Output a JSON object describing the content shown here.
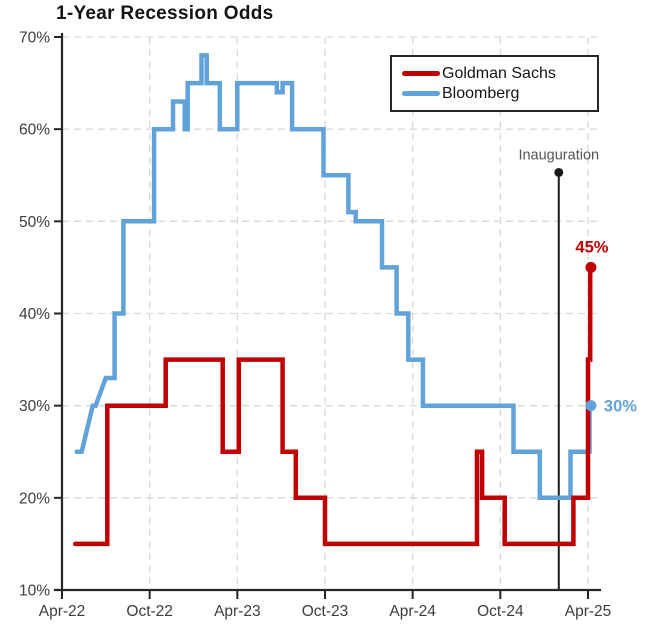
{
  "title": "1-Year Recession Odds",
  "colors": {
    "goldman": "#c00000",
    "bloomberg": "#62a2da",
    "grid": "#d9d9d9",
    "axis": "#262626",
    "tick_label": "#3d3d3d",
    "annotation": "#555555",
    "background": "#ffffff"
  },
  "legend": {
    "items": [
      {
        "label": "Goldman Sachs",
        "series": "goldman"
      },
      {
        "label": "Bloomberg",
        "series": "bloomberg"
      }
    ]
  },
  "annotation": {
    "label": "Inauguration",
    "x_month": 34.0,
    "line_top_pct": 55.3
  },
  "chart_data": {
    "type": "line",
    "step": true,
    "title": "1-Year Recession Odds",
    "x_unit": "months since Apr-2022",
    "x_axis": {
      "ticks": [
        0,
        6,
        12,
        18,
        24,
        30,
        36
      ],
      "tick_labels": [
        "Apr-22",
        "Oct-22",
        "Apr-23",
        "Oct-23",
        "Apr-24",
        "Oct-24",
        "Apr-25"
      ]
    },
    "y_axis": {
      "min": 10,
      "max": 70,
      "tick_step": 10,
      "suffix": "%",
      "grid_values": [
        20,
        30,
        40,
        50,
        60,
        70
      ]
    },
    "legend_position": "top-right",
    "grid": "dashed",
    "series": [
      {
        "name": "Goldman Sachs",
        "color_key": "goldman",
        "end_label": "45%",
        "points": [
          [
            0.9,
            15
          ],
          [
            3.1,
            30
          ],
          [
            7.1,
            35
          ],
          [
            11.0,
            25
          ],
          [
            12.1,
            35
          ],
          [
            15.1,
            25
          ],
          [
            16.0,
            20
          ],
          [
            18.0,
            15
          ],
          [
            28.4,
            25
          ],
          [
            28.75,
            20
          ],
          [
            30.3,
            15
          ],
          [
            35.0,
            20
          ],
          [
            36.0,
            35
          ],
          [
            36.15,
            45
          ],
          [
            36.2,
            45
          ]
        ]
      },
      {
        "name": "Bloomberg",
        "color_key": "bloomberg",
        "end_label": "30%",
        "points": [
          [
            1.0,
            25
          ],
          [
            1.35,
            25
          ],
          [
            2.1,
            30,
            "L"
          ],
          [
            2.3,
            30
          ],
          [
            3.0,
            33,
            "L"
          ],
          [
            3.6,
            40
          ],
          [
            4.2,
            50
          ],
          [
            6.3,
            60
          ],
          [
            7.6,
            63
          ],
          [
            8.4,
            60
          ],
          [
            8.6,
            65
          ],
          [
            9.55,
            68
          ],
          [
            9.9,
            65
          ],
          [
            10.8,
            60
          ],
          [
            12.0,
            65
          ],
          [
            14.7,
            64
          ],
          [
            15.1,
            65
          ],
          [
            15.75,
            60
          ],
          [
            17.9,
            55
          ],
          [
            19.6,
            51
          ],
          [
            20.1,
            50
          ],
          [
            21.9,
            45
          ],
          [
            22.9,
            40
          ],
          [
            23.7,
            35
          ],
          [
            24.7,
            30
          ],
          [
            30.9,
            25
          ],
          [
            32.7,
            20
          ],
          [
            34.8,
            25
          ],
          [
            36.1,
            30
          ],
          [
            36.2,
            30
          ]
        ]
      }
    ]
  }
}
